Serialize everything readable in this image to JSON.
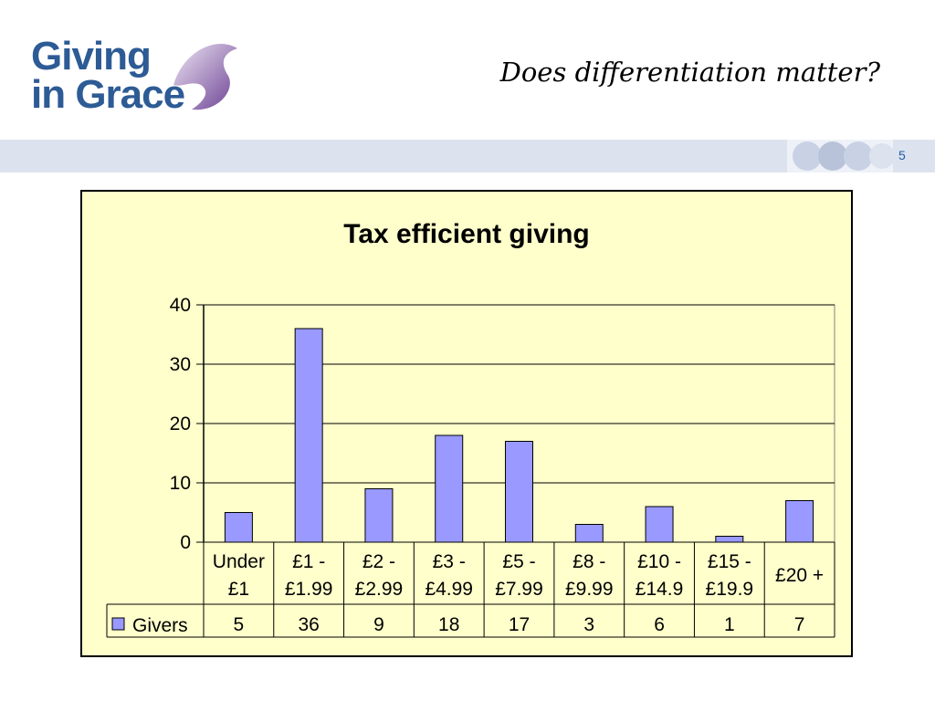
{
  "logo": {
    "line1": "Giving",
    "line2": "in Grace"
  },
  "slide": {
    "title": "Does differentiation matter?",
    "page_number": "5"
  },
  "colors": {
    "bar_fill": "#9999ff",
    "panel_bg": "#ffffcc",
    "banner": "#dde3ee",
    "logo_blue": "#2d5b95"
  },
  "chart_data": {
    "type": "bar",
    "title": "Tax efficient giving",
    "categories": [
      [
        "Under",
        "£1"
      ],
      [
        "£1 -",
        "£1.99"
      ],
      [
        "£2 -",
        "£2.99"
      ],
      [
        "£3 -",
        "£4.99"
      ],
      [
        "£5 -",
        "£7.99"
      ],
      [
        "£8 -",
        "£9.99"
      ],
      [
        "£10 -",
        "£14.9"
      ],
      [
        "£15 -",
        "£19.9"
      ],
      [
        "£20 +"
      ]
    ],
    "series": [
      {
        "name": "Givers",
        "values": [
          5,
          36,
          9,
          18,
          17,
          3,
          6,
          1,
          7
        ]
      }
    ],
    "ylim": [
      0,
      40
    ],
    "yticks": [
      0,
      10,
      20,
      30,
      40
    ],
    "grid": true,
    "data_table": true,
    "legend": "data-table"
  }
}
